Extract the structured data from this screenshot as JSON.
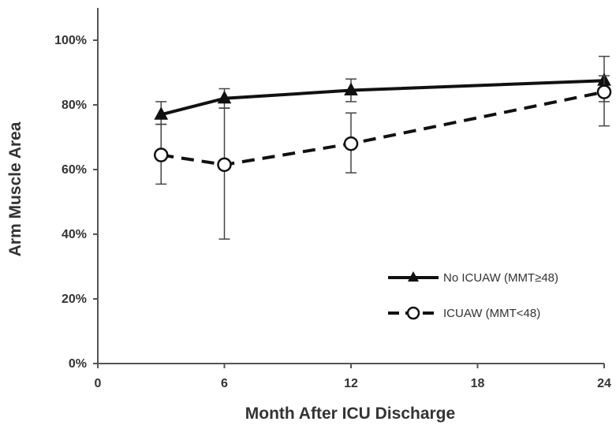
{
  "chart_data": {
    "type": "line",
    "xlabel": "Month After ICU Discharge",
    "ylabel": "Arm Muscle Area",
    "xlim": [
      0,
      24
    ],
    "ylim": [
      0,
      1.0
    ],
    "x_ticks": [
      "0",
      "6",
      "12",
      "18",
      "24"
    ],
    "y_ticks": [
      "0%",
      "20%",
      "40%",
      "60%",
      "80%",
      "100%"
    ],
    "grid": false,
    "legend_position": "bottom-right",
    "series": [
      {
        "name": "No ICUAW (MMT≥48)",
        "line_style": "solid",
        "marker": "filled-triangle",
        "color": "#111111",
        "x": [
          3,
          6,
          12,
          24
        ],
        "y": [
          0.77,
          0.82,
          0.845,
          0.875
        ],
        "err_low": [
          0.74,
          0.79,
          0.81,
          0.81
        ],
        "err_high": [
          0.81,
          0.85,
          0.88,
          0.95
        ]
      },
      {
        "name": "ICUAW (MMT<48)",
        "line_style": "dashed",
        "marker": "open-circle",
        "color": "#111111",
        "x": [
          3,
          6,
          12,
          24
        ],
        "y": [
          0.645,
          0.615,
          0.68,
          0.84
        ],
        "err_low": [
          0.555,
          0.385,
          0.59,
          0.735
        ],
        "err_high": [
          0.74,
          0.79,
          0.775,
          0.89
        ]
      }
    ]
  }
}
